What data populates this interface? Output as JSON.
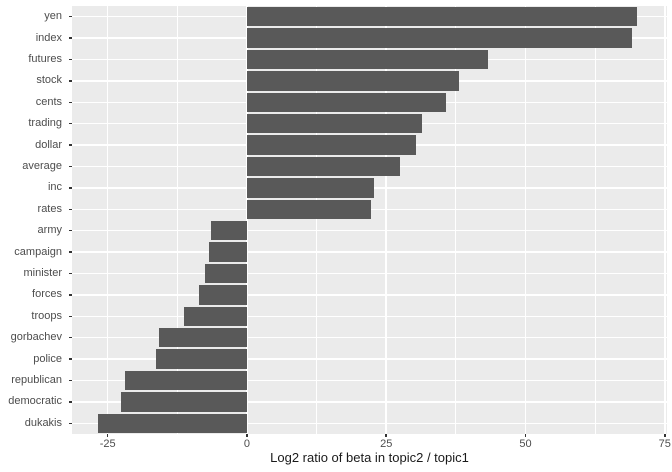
{
  "chart_data": {
    "type": "bar",
    "orientation": "horizontal",
    "title": "",
    "xlabel": "Log2 ratio of beta in topic2 / topic1",
    "ylabel": "",
    "categories": [
      "yen",
      "index",
      "futures",
      "stock",
      "cents",
      "trading",
      "dollar",
      "average",
      "inc",
      "rates",
      "army",
      "campaign",
      "minister",
      "forces",
      "troops",
      "gorbachev",
      "police",
      "republican",
      "democratic",
      "dukakis"
    ],
    "values": [
      70.1,
      69.1,
      43.2,
      38.0,
      35.7,
      31.4,
      30.4,
      27.5,
      22.8,
      22.3,
      -6.5,
      -6.8,
      -7.5,
      -8.6,
      -11.3,
      -15.7,
      -16.3,
      -21.8,
      -22.6,
      -26.7
    ],
    "xlim": [
      -31.4,
      75.4
    ],
    "x_ticks": [
      -25,
      0,
      25,
      50,
      75
    ],
    "x_tick_labels": [
      "-25",
      "0",
      "25",
      "50",
      "75"
    ],
    "x_minor_ticks": [
      -12.5,
      12.5,
      37.5,
      62.5
    ],
    "grid": true,
    "legend": false,
    "bar_width_fraction": 0.9,
    "colors": {
      "bar_fill": "#595959",
      "panel_background": "#EBEBEB",
      "grid_major": "#FFFFFF",
      "grid_minor": "#FFFFFF",
      "axis_text": "#4D4D4D",
      "axis_title": "#1a1a1a",
      "tick_mark": "#333333",
      "figure_background": "#FFFFFF"
    }
  }
}
